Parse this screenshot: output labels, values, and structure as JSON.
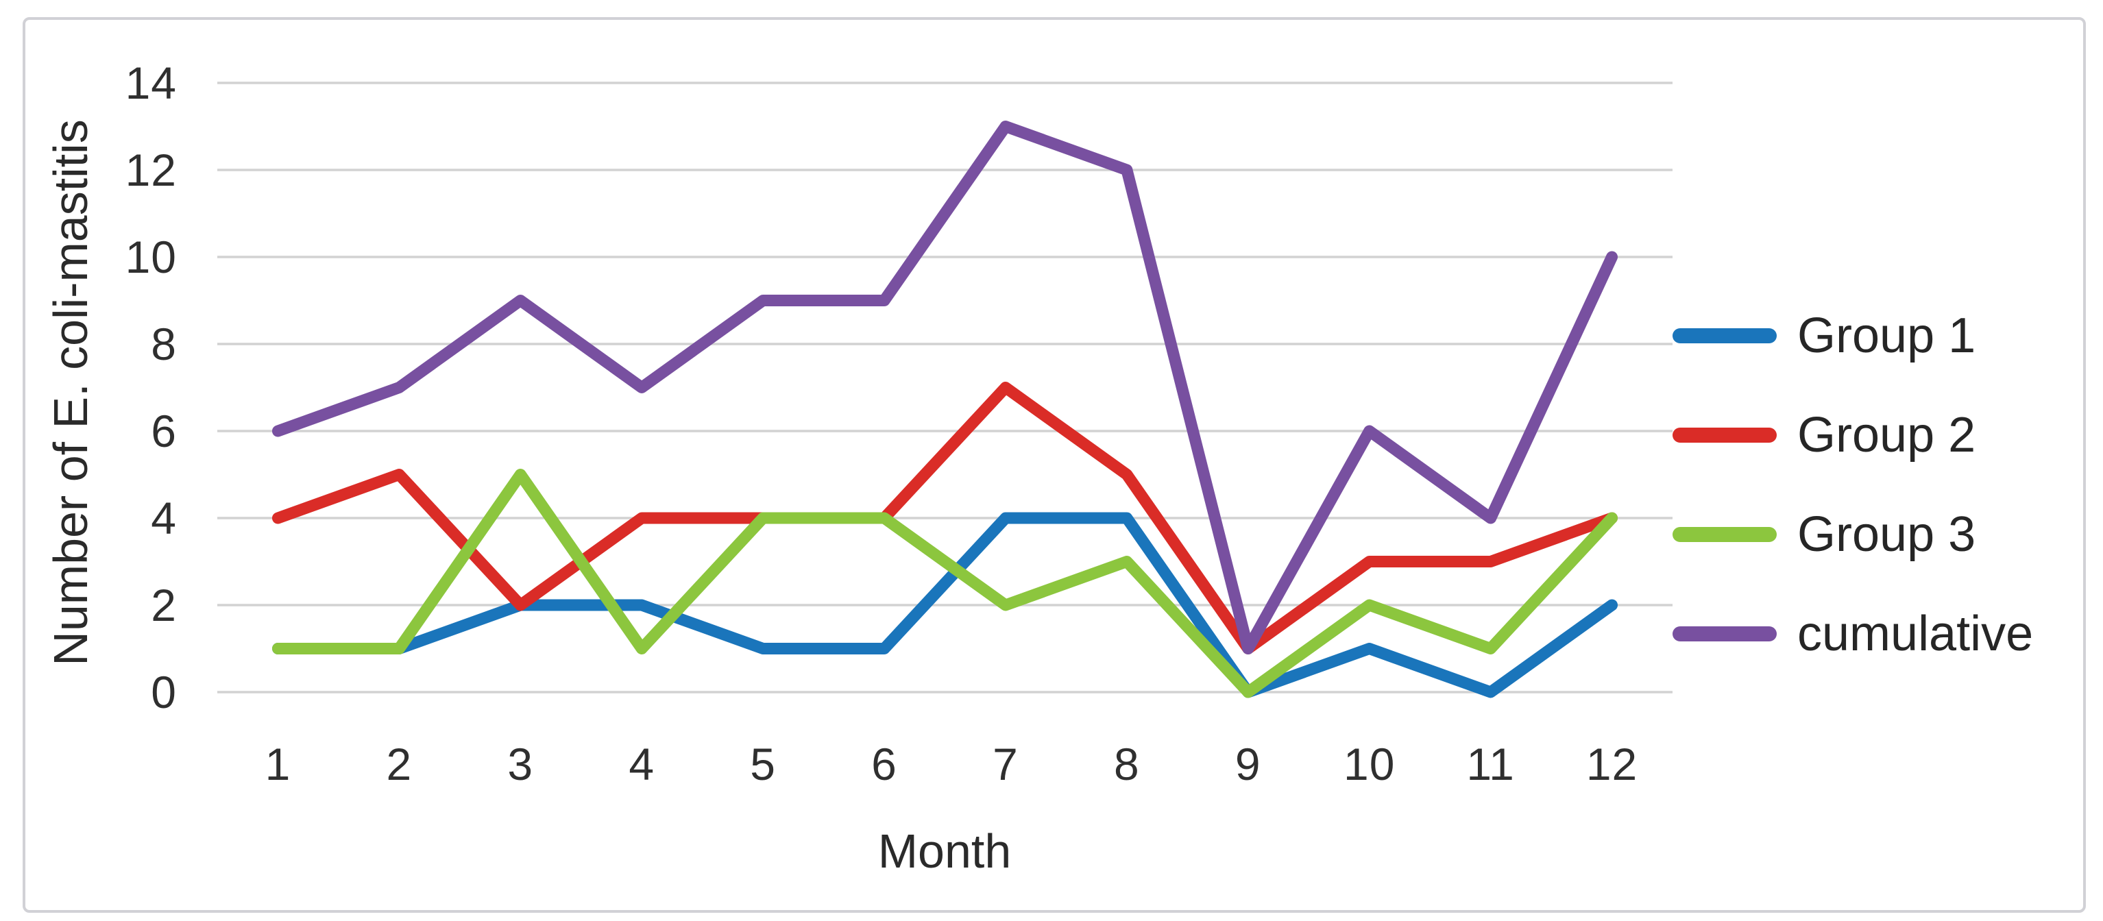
{
  "colors": {
    "background": "#ffffff",
    "frame_border": "#d1d1d6",
    "gridline": "#d2d2d2",
    "tick_text": "#2f2f2f",
    "title_text": "#2a2a2a"
  },
  "chart_data": {
    "type": "line",
    "title": "",
    "xlabel": "Month",
    "ylabel": "Number of E. coli-mastitis",
    "categories": [
      "1",
      "2",
      "3",
      "4",
      "5",
      "6",
      "7",
      "8",
      "9",
      "10",
      "11",
      "12"
    ],
    "y_ticks": [
      0,
      2,
      4,
      6,
      8,
      10,
      12,
      14
    ],
    "ylim": [
      0,
      14
    ],
    "grid": "horizontal-only",
    "legend_position": "right",
    "series": [
      {
        "name": "Group 1",
        "color": "#1a75bb",
        "values": [
          1,
          1,
          2,
          2,
          1,
          1,
          4,
          4,
          0,
          1,
          0,
          2
        ]
      },
      {
        "name": "Group 2",
        "color": "#da2c27",
        "values": [
          4,
          5,
          2,
          4,
          4,
          4,
          7,
          5,
          1,
          3,
          3,
          4
        ]
      },
      {
        "name": "Group 3",
        "color": "#8cc63e",
        "values": [
          1,
          1,
          5,
          1,
          4,
          4,
          2,
          3,
          0,
          2,
          1,
          4
        ]
      },
      {
        "name": "cumulative",
        "color": "#7850a0",
        "values": [
          6,
          7,
          9,
          7,
          9,
          9,
          13,
          12,
          1,
          6,
          4,
          10
        ]
      }
    ]
  }
}
